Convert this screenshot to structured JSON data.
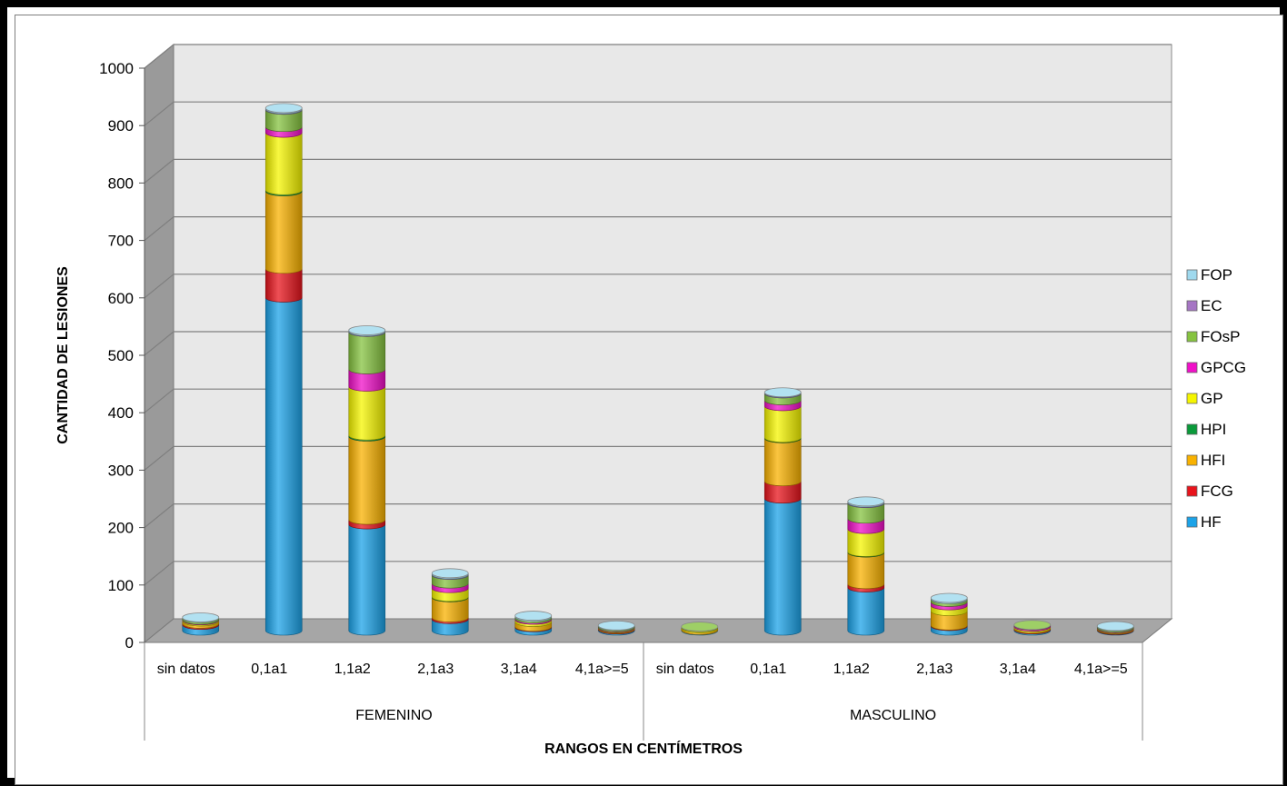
{
  "chart_data": {
    "type": "bar",
    "stacked": true,
    "style": "3d-cylinder",
    "ylabel": "CANTIDAD DE LESIONES",
    "xlabel": "RANGOS EN CENTÍMETROS",
    "ylim": [
      0,
      1000
    ],
    "yticks": [
      "0",
      "100",
      "200",
      "300",
      "400",
      "500",
      "600",
      "700",
      "800",
      "900",
      "1000"
    ],
    "ytick_values": [
      0,
      100,
      200,
      300,
      400,
      500,
      600,
      700,
      800,
      900,
      1000
    ],
    "groups": [
      "FEMENINO",
      "MASCULINO"
    ],
    "categories": [
      "sin datos",
      "0,1a1",
      "1,1a2",
      "2,1a3",
      "3,1a4",
      "4,1a>=5",
      "sin datos",
      "0,1a1",
      "1,1a2",
      "2,1a3",
      "3,1a4",
      "4,1a>=5"
    ],
    "legend_position": "right",
    "grid": true,
    "series": [
      {
        "name": "HF",
        "color": "#1ca3e8",
        "values": [
          10,
          580,
          185,
          20,
          6,
          2,
          1,
          230,
          75,
          8,
          2,
          1
        ]
      },
      {
        "name": "FCG",
        "color": "#e8141c",
        "values": [
          2,
          50,
          8,
          3,
          1,
          1,
          0,
          30,
          6,
          1,
          1,
          1
        ]
      },
      {
        "name": "HFI",
        "color": "#f9b200",
        "values": [
          4,
          135,
          145,
          35,
          8,
          1,
          3,
          75,
          55,
          25,
          2,
          1
        ]
      },
      {
        "name": "HPI",
        "color": "#0a9a3a",
        "values": [
          0,
          2,
          2,
          1,
          0,
          0,
          0,
          1,
          1,
          0,
          0,
          0
        ]
      },
      {
        "name": "GP",
        "color": "#f5f500",
        "values": [
          2,
          100,
          85,
          15,
          4,
          1,
          2,
          55,
          40,
          10,
          2,
          1
        ]
      },
      {
        "name": "GPCG",
        "color": "#f010c8",
        "values": [
          1,
          10,
          30,
          8,
          2,
          1,
          0,
          10,
          18,
          6,
          2,
          1
        ]
      },
      {
        "name": "FOsP",
        "color": "#86c340",
        "values": [
          3,
          30,
          65,
          15,
          3,
          2,
          1,
          12,
          27,
          5,
          1,
          2
        ]
      },
      {
        "name": "EC",
        "color": "#a676c4",
        "values": [
          0,
          1,
          1,
          1,
          0,
          0,
          0,
          1,
          1,
          0,
          0,
          0
        ]
      },
      {
        "name": "FOP",
        "color": "#9fd9ee",
        "values": [
          1,
          2,
          2,
          2,
          2,
          1,
          0,
          1,
          2,
          2,
          0,
          1
        ]
      }
    ]
  }
}
